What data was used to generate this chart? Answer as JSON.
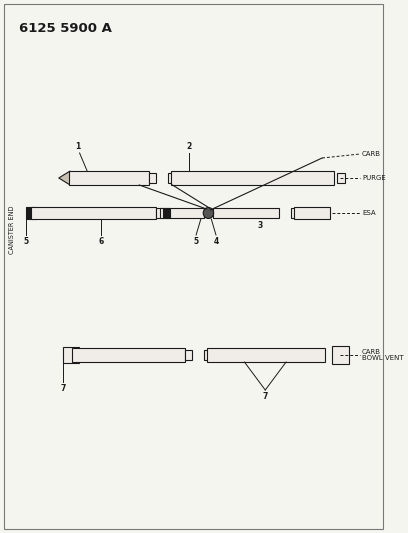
{
  "title": "6125 5900 A",
  "background_color": "#f5f5f0",
  "line_color": "#1a1a1a",
  "text_color": "#1a1a1a",
  "title_fontsize": 9.5,
  "label_fontsize": 5.0,
  "canister_end_label": "CANISTER END",
  "labels": {
    "carb": "CARB",
    "purge": "PURGE",
    "esa": "ESA",
    "carb_bowl_vent": "CARB\nBOWL VENT"
  },
  "fig_width": 4.08,
  "fig_height": 5.33,
  "dpi": 100
}
